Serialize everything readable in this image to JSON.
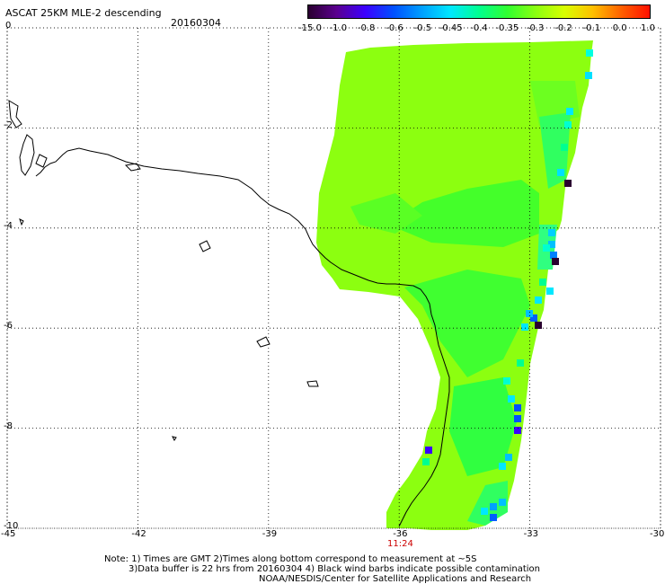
{
  "header": {
    "title": "ASCAT 25KM MLE-2 descending",
    "date": "20160304"
  },
  "colorbar": {
    "tick_labels": [
      "-15.0",
      "-1.0",
      "-0.8",
      "-0.6",
      "-0.5",
      "-0.45",
      "-0.4",
      "-0.35",
      "-0.3",
      "-0.2",
      "-0.1",
      "0.0",
      "1.0"
    ],
    "colors": [
      "#2a0030",
      "#5b008f",
      "#3c00ff",
      "#0050ff",
      "#00a0ff",
      "#00e8ff",
      "#00ff90",
      "#30ff30",
      "#8cff10",
      "#d8ff00",
      "#ffc000",
      "#ff6000",
      "#ff1000"
    ]
  },
  "axes": {
    "y_labels": [
      "0",
      "-2",
      "-4",
      "-6",
      "-8",
      "-10"
    ],
    "x_labels": [
      "-45",
      "-42",
      "-39",
      "-36",
      "-33",
      "-30"
    ],
    "x_range": [
      -45,
      -30
    ],
    "y_range": [
      -10,
      0
    ]
  },
  "pass_time": {
    "label": "11:24",
    "color": "#cc0000"
  },
  "notes": {
    "line1": "Note: 1) Times are GMT 2)Times along bottom correspond to measurement at ~5S",
    "line2": "3)Data buffer is 22 hrs from 20160304 4) Black wind barbs indicate possible contamination",
    "line3": "NOAA/NESDIS/Center for Satellite Applications and Research"
  }
}
